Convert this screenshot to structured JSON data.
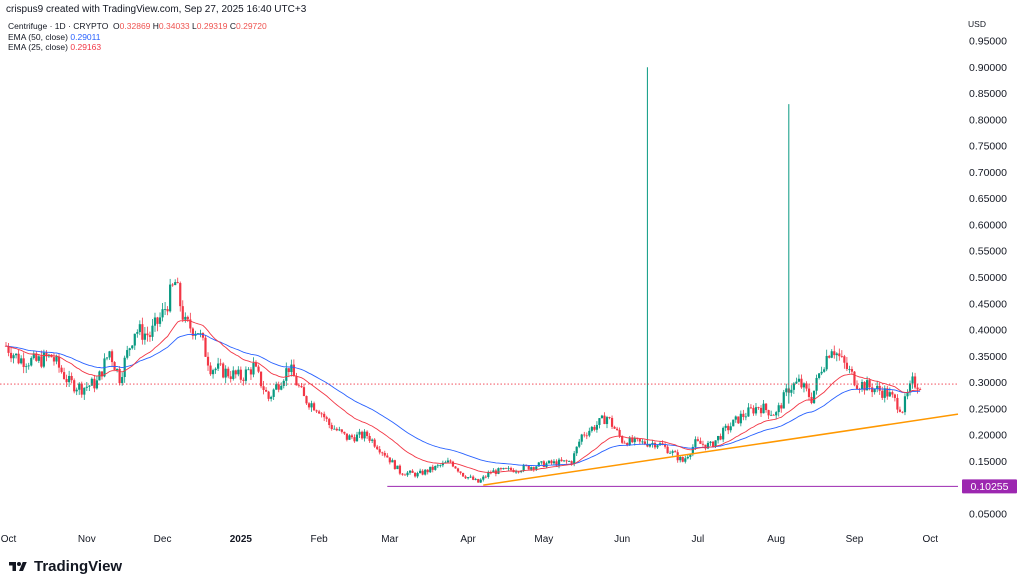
{
  "header": {
    "created_by": "crispus9 created with TradingView.com, Sep 27, 2025 16:40 UTC+3"
  },
  "legend": {
    "symbol": "Centrifuge · 1D · CRYPTO",
    "o_label": "O",
    "o": "0.32869",
    "h_label": "H",
    "h": "0.34033",
    "l_label": "L",
    "l": "0.29319",
    "c_label": "C",
    "c": "0.29720",
    "ema50_label": "EMA (50, close)",
    "ema50_value": "0.29011",
    "ema50_color": "#2962ff",
    "ema25_label": "EMA (25, close)",
    "ema25_value": "0.29163",
    "ema25_color": "#f23645"
  },
  "currency": "USD",
  "branding": {
    "name": "TradingView"
  },
  "chart_data": {
    "type": "candlestick",
    "title": "Centrifuge · 1D · CRYPTO",
    "ylim": [
      0.02,
      0.97
    ],
    "y_ticks": [
      "0.05000",
      "0.10000",
      "0.15000",
      "0.20000",
      "0.25000",
      "0.30000",
      "0.35000",
      "0.40000",
      "0.45000",
      "0.50000",
      "0.55000",
      "0.60000",
      "0.65000",
      "0.70000",
      "0.75000",
      "0.80000",
      "0.85000",
      "0.90000",
      "0.95000"
    ],
    "x_ticks": [
      {
        "label": "Oct",
        "date": "2024-10-01"
      },
      {
        "label": "Nov",
        "date": "2024-11-01"
      },
      {
        "label": "Dec",
        "date": "2024-12-01"
      },
      {
        "label": "2025",
        "date": "2025-01-01"
      },
      {
        "label": "Feb",
        "date": "2025-02-01"
      },
      {
        "label": "Mar",
        "date": "2025-03-01"
      },
      {
        "label": "Apr",
        "date": "2025-04-01"
      },
      {
        "label": "May",
        "date": "2025-05-01"
      },
      {
        "label": "Jun",
        "date": "2025-06-01"
      },
      {
        "label": "Jul",
        "date": "2025-07-01"
      },
      {
        "label": "Aug",
        "date": "2025-08-01"
      },
      {
        "label": "Sep",
        "date": "2025-09-01"
      },
      {
        "label": "Oct",
        "date": "2025-10-01"
      }
    ],
    "price_path": [
      [
        "2024-09-30",
        0.37
      ],
      [
        "2024-10-05",
        0.345
      ],
      [
        "2024-10-12",
        0.34
      ],
      [
        "2024-10-18",
        0.35
      ],
      [
        "2024-10-25",
        0.3
      ],
      [
        "2024-10-30",
        0.29
      ],
      [
        "2024-11-05",
        0.3
      ],
      [
        "2024-11-10",
        0.36
      ],
      [
        "2024-11-14",
        0.31
      ],
      [
        "2024-11-20",
        0.4
      ],
      [
        "2024-11-26",
        0.39
      ],
      [
        "2024-12-01",
        0.43
      ],
      [
        "2024-12-06",
        0.49
      ],
      [
        "2024-12-10",
        0.41
      ],
      [
        "2024-12-15",
        0.4
      ],
      [
        "2024-12-20",
        0.33
      ],
      [
        "2024-12-26",
        0.32
      ],
      [
        "2025-01-01",
        0.31
      ],
      [
        "2025-01-06",
        0.33
      ],
      [
        "2025-01-12",
        0.27
      ],
      [
        "2025-01-20",
        0.33
      ],
      [
        "2025-01-26",
        0.27
      ],
      [
        "2025-02-01",
        0.25
      ],
      [
        "2025-02-05",
        0.22
      ],
      [
        "2025-02-12",
        0.195
      ],
      [
        "2025-02-20",
        0.2
      ],
      [
        "2025-02-27",
        0.165
      ],
      [
        "2025-03-05",
        0.13
      ],
      [
        "2025-03-12",
        0.125
      ],
      [
        "2025-03-20",
        0.14
      ],
      [
        "2025-03-25",
        0.15
      ],
      [
        "2025-03-30",
        0.125
      ],
      [
        "2025-04-05",
        0.11
      ],
      [
        "2025-04-10",
        0.13
      ],
      [
        "2025-04-20",
        0.135
      ],
      [
        "2025-05-01",
        0.145
      ],
      [
        "2025-05-12",
        0.15
      ],
      [
        "2025-05-16",
        0.2
      ],
      [
        "2025-05-22",
        0.22
      ],
      [
        "2025-05-26",
        0.235
      ],
      [
        "2025-06-01",
        0.19
      ],
      [
        "2025-06-08",
        0.185
      ],
      [
        "2025-06-15",
        0.185
      ],
      [
        "2025-06-20",
        0.17
      ],
      [
        "2025-06-25",
        0.15
      ],
      [
        "2025-06-30",
        0.185
      ],
      [
        "2025-07-06",
        0.18
      ],
      [
        "2025-07-12",
        0.21
      ],
      [
        "2025-07-18",
        0.235
      ],
      [
        "2025-07-25",
        0.255
      ],
      [
        "2025-08-01",
        0.24
      ],
      [
        "2025-08-06",
        0.29
      ],
      [
        "2025-08-10",
        0.3
      ],
      [
        "2025-08-15",
        0.27
      ],
      [
        "2025-08-19",
        0.33
      ],
      [
        "2025-08-23",
        0.37
      ],
      [
        "2025-08-27",
        0.34
      ],
      [
        "2025-09-02",
        0.3
      ],
      [
        "2025-09-08",
        0.29
      ],
      [
        "2025-09-14",
        0.28
      ],
      [
        "2025-09-20",
        0.25
      ],
      [
        "2025-09-24",
        0.3
      ],
      [
        "2025-09-27",
        0.297
      ]
    ],
    "wicks": [
      {
        "date": "2025-06-11",
        "low": 0.18,
        "high": 0.9
      },
      {
        "date": "2025-08-06",
        "low": 0.26,
        "high": 0.83
      }
    ],
    "ema_series": [
      {
        "name": "EMA (50, close)",
        "color": "#2962ff",
        "period": 50
      },
      {
        "name": "EMA (25, close)",
        "color": "#f23645",
        "period": 25
      }
    ],
    "annotations": [
      {
        "type": "horizontal",
        "price": 0.10255,
        "from": "2025-02-28",
        "to": "2025-10-01",
        "label": "0.10255",
        "color": "#9c27b0"
      },
      {
        "type": "trendline",
        "from": {
          "date": "2025-04-07",
          "price": 0.105
        },
        "to": {
          "date": "2025-10-12",
          "price": 0.24
        },
        "color": "#ff9800"
      },
      {
        "type": "price_line",
        "price": 0.2972,
        "color": "#f23645"
      }
    ],
    "grid": false,
    "legend_position": "top-left"
  }
}
